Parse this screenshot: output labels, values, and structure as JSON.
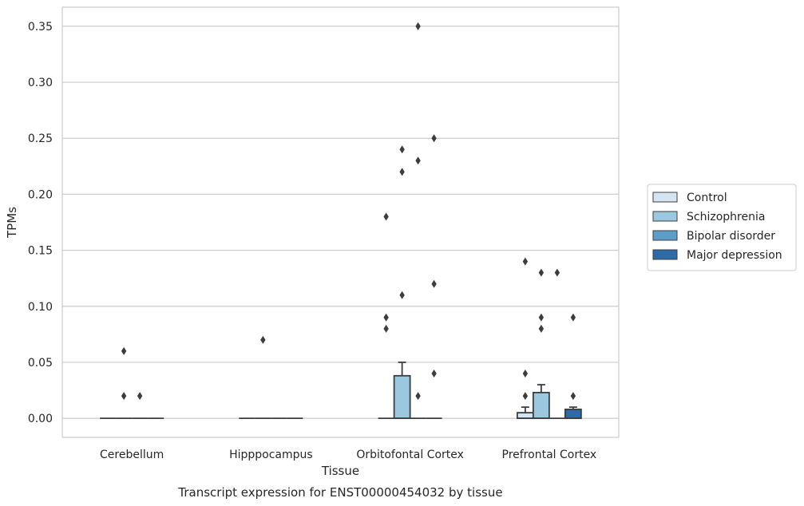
{
  "chart_data": {
    "type": "box",
    "title": "Transcript expression for ENST00000454032 by tissue",
    "xlabel": "Tissue",
    "ylabel": "TPMs",
    "ylim": [
      -0.017,
      0.367
    ],
    "yticks": [
      "0.00",
      "0.05",
      "0.10",
      "0.15",
      "0.20",
      "0.25",
      "0.30",
      "0.35"
    ],
    "ytick_values": [
      0,
      0.05,
      0.1,
      0.15,
      0.2,
      0.25,
      0.3,
      0.35
    ],
    "grid": true,
    "legend_position": "right",
    "categories": [
      "Cerebellum",
      "Hipppocampus",
      "Orbitofontal Cortex",
      "Prefrontal Cortex"
    ],
    "series": [
      {
        "name": "Control",
        "color": "#d3e4f3",
        "boxes": [
          {
            "q1": 0,
            "median": 0,
            "q3": 0,
            "whisker_low": 0,
            "whisker_high": 0,
            "outliers": []
          },
          {
            "q1": 0,
            "median": 0,
            "q3": 0,
            "whisker_low": 0,
            "whisker_high": 0,
            "outliers": []
          },
          {
            "q1": 0,
            "median": 0,
            "q3": 0,
            "whisker_low": 0,
            "whisker_high": 0,
            "outliers": [
              0.18,
              0.09,
              0.08
            ]
          },
          {
            "q1": 0,
            "median": 0,
            "q3": 0.005,
            "whisker_low": 0,
            "whisker_high": 0.01,
            "outliers": [
              0.14,
              0.04,
              0.02
            ]
          }
        ]
      },
      {
        "name": "Schizophrenia",
        "color": "#9ac8e0",
        "boxes": [
          {
            "q1": 0,
            "median": 0,
            "q3": 0,
            "whisker_low": 0,
            "whisker_high": 0,
            "outliers": [
              0.06,
              0.02
            ]
          },
          {
            "q1": 0,
            "median": 0,
            "q3": 0,
            "whisker_low": 0,
            "whisker_high": 0,
            "outliers": [
              0.07
            ]
          },
          {
            "q1": 0,
            "median": 0,
            "q3": 0.038,
            "whisker_low": 0,
            "whisker_high": 0.05,
            "outliers": [
              0.24,
              0.22,
              0.11
            ]
          },
          {
            "q1": 0,
            "median": 0,
            "q3": 0.023,
            "whisker_low": 0,
            "whisker_high": 0.03,
            "outliers": [
              0.13,
              0.09,
              0.08
            ]
          }
        ]
      },
      {
        "name": "Bipolar disorder",
        "color": "#5a9ec9",
        "boxes": [
          {
            "q1": 0,
            "median": 0,
            "q3": 0,
            "whisker_low": 0,
            "whisker_high": 0,
            "outliers": [
              0.02
            ]
          },
          {
            "q1": 0,
            "median": 0,
            "q3": 0,
            "whisker_low": 0,
            "whisker_high": 0,
            "outliers": []
          },
          {
            "q1": 0,
            "median": 0,
            "q3": 0,
            "whisker_low": 0,
            "whisker_high": 0,
            "outliers": [
              0.35,
              0.23,
              0.02
            ]
          },
          {
            "q1": 0,
            "median": 0,
            "q3": 0,
            "whisker_low": 0,
            "whisker_high": 0,
            "outliers": [
              0.13
            ]
          }
        ]
      },
      {
        "name": "Major depression",
        "color": "#2c6aa8",
        "boxes": [
          {
            "q1": 0,
            "median": 0,
            "q3": 0,
            "whisker_low": 0,
            "whisker_high": 0,
            "outliers": []
          },
          {
            "q1": 0,
            "median": 0,
            "q3": 0,
            "whisker_low": 0,
            "whisker_high": 0,
            "outliers": []
          },
          {
            "q1": 0,
            "median": 0,
            "q3": 0,
            "whisker_low": 0,
            "whisker_high": 0,
            "outliers": [
              0.25,
              0.12,
              0.04
            ]
          },
          {
            "q1": 0,
            "median": 0,
            "q3": 0.008,
            "whisker_low": 0,
            "whisker_high": 0.01,
            "outliers": [
              0.09,
              0.02
            ]
          }
        ]
      }
    ]
  }
}
